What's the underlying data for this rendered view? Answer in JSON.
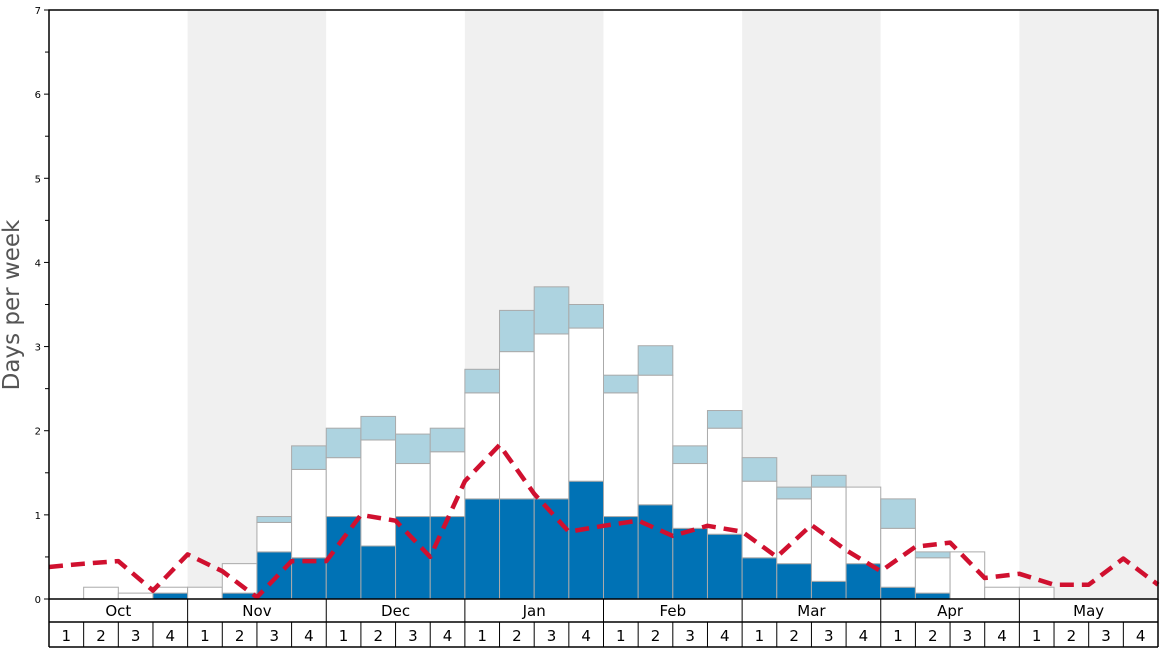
{
  "chart_data": {
    "type": "bar",
    "ylabel": "Days per week",
    "ylim": [
      0,
      7
    ],
    "y_ticks": [
      "0",
      "1",
      "2",
      "3",
      "4",
      "5",
      "6",
      "7"
    ],
    "months": [
      "Oct",
      "Nov",
      "Dec",
      "Jan",
      "Feb",
      "Mar",
      "Apr",
      "May"
    ],
    "weeks": [
      "1",
      "2",
      "3",
      "4"
    ],
    "stacked": true,
    "series": [
      {
        "key": "dark",
        "color": "#0072b5",
        "values": [
          0,
          0,
          0,
          0.07,
          0,
          0.07,
          0.56,
          0.49,
          0.98,
          0.63,
          0.98,
          0.98,
          1.19,
          1.19,
          1.19,
          1.4,
          0.98,
          1.12,
          0.84,
          0.77,
          0.49,
          0.42,
          0.21,
          0.42,
          0.14,
          0.07,
          0,
          0,
          0,
          0,
          0,
          0
        ]
      },
      {
        "key": "white",
        "color": "#ffffff",
        "values": [
          0,
          0.14,
          0.07,
          0.07,
          0.14,
          0.35,
          0.35,
          1.05,
          0.7,
          1.26,
          0.63,
          0.77,
          1.26,
          1.75,
          1.96,
          1.82,
          1.47,
          1.54,
          0.77,
          1.26,
          0.91,
          0.77,
          1.12,
          0.91,
          0.7,
          0.42,
          0.56,
          0.14,
          0.14,
          0,
          0,
          0
        ]
      },
      {
        "key": "light",
        "color": "#add3e0",
        "values": [
          0,
          0,
          0,
          0,
          0,
          0,
          0.07,
          0.28,
          0.35,
          0.28,
          0.35,
          0.28,
          0.28,
          0.49,
          0.56,
          0.28,
          0.21,
          0.35,
          0.21,
          0.21,
          0.28,
          0.14,
          0.14,
          0,
          0.35,
          0.07,
          0,
          0,
          0,
          0,
          0,
          0
        ]
      }
    ],
    "line": {
      "color": "#d0102f",
      "style": "dashed",
      "values": [
        0.38,
        0.42,
        0.45,
        0.1,
        0.53,
        0.33,
        0.02,
        0.45,
        0.45,
        1.0,
        0.93,
        0.5,
        1.4,
        1.83,
        1.25,
        0.8,
        0.87,
        0.93,
        0.75,
        0.87,
        0.8,
        0.5,
        0.88,
        0.58,
        0.33,
        0.62,
        0.67,
        0.25,
        0.3,
        0.17,
        0.17,
        0.48,
        0.17
      ]
    },
    "month_shading": [
      "#ffffff",
      "#f0f0f0",
      "#ffffff",
      "#f0f0f0",
      "#ffffff",
      "#f0f0f0",
      "#ffffff",
      "#f0f0f0"
    ],
    "grid": false,
    "legend": "none"
  }
}
